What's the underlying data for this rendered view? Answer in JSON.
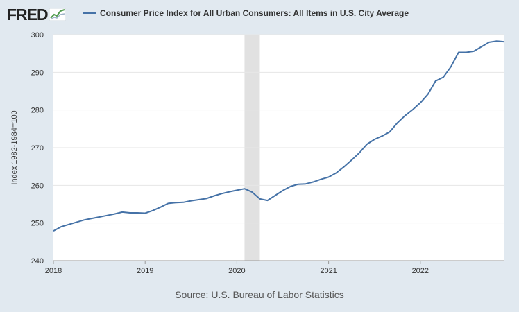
{
  "brand": {
    "logo_text": "FRED",
    "logo_icon": "sparkline-icon"
  },
  "legend": {
    "label": "Consumer Price Index for All Urban Consumers: All Items in U.S. City Average",
    "color": "#4572a7"
  },
  "source_text": "Source: U.S. Bureau of Labor Statistics",
  "colors": {
    "line": "#4572a7",
    "recession": "#e1e1e1",
    "plot_bg": "#ffffff",
    "page_bg": "#e1e9f0"
  },
  "chart_data": {
    "type": "line",
    "title": "",
    "ylabel": "Index 1982-1984=100",
    "xlabel": "",
    "ylim": [
      240,
      300
    ],
    "yticks": [
      "240",
      "250",
      "260",
      "270",
      "280",
      "290",
      "300"
    ],
    "xticks": [
      "2018",
      "2019",
      "2020",
      "2021",
      "2022"
    ],
    "x_range": [
      "2018-01",
      "2022-12"
    ],
    "grid": true,
    "recession": {
      "start": "2020-02",
      "end": "2020-04"
    },
    "series": [
      {
        "name": "Consumer Price Index for All Urban Consumers: All Items in U.S. City Average",
        "x": [
          "2018-01",
          "2018-02",
          "2018-03",
          "2018-04",
          "2018-05",
          "2018-06",
          "2018-07",
          "2018-08",
          "2018-09",
          "2018-10",
          "2018-11",
          "2018-12",
          "2019-01",
          "2019-02",
          "2019-03",
          "2019-04",
          "2019-05",
          "2019-06",
          "2019-07",
          "2019-08",
          "2019-09",
          "2019-10",
          "2019-11",
          "2019-12",
          "2020-01",
          "2020-02",
          "2020-03",
          "2020-04",
          "2020-05",
          "2020-06",
          "2020-07",
          "2020-08",
          "2020-09",
          "2020-10",
          "2020-11",
          "2020-12",
          "2021-01",
          "2021-02",
          "2021-03",
          "2021-04",
          "2021-05",
          "2021-06",
          "2021-07",
          "2021-08",
          "2021-09",
          "2021-10",
          "2021-11",
          "2021-12",
          "2022-01",
          "2022-02",
          "2022-03",
          "2022-04",
          "2022-05",
          "2022-06",
          "2022-07",
          "2022-08",
          "2022-09",
          "2022-10",
          "2022-11",
          "2022-12"
        ],
        "values": [
          247.9,
          249.0,
          249.6,
          250.2,
          250.8,
          251.2,
          251.6,
          252.0,
          252.4,
          252.9,
          252.7,
          252.7,
          252.6,
          253.3,
          254.2,
          255.2,
          255.4,
          255.5,
          255.9,
          256.2,
          256.5,
          257.2,
          257.8,
          258.3,
          258.7,
          259.1,
          258.2,
          256.4,
          256.0,
          257.3,
          258.6,
          259.7,
          260.3,
          260.4,
          260.9,
          261.6,
          262.2,
          263.3,
          264.9,
          266.7,
          268.6,
          270.9,
          272.2,
          273.1,
          274.2,
          276.6,
          278.5,
          280.1,
          281.9,
          284.2,
          287.7,
          288.7,
          291.5,
          295.3,
          295.3,
          295.6,
          296.8,
          298.0,
          298.3,
          298.1
        ]
      }
    ]
  }
}
